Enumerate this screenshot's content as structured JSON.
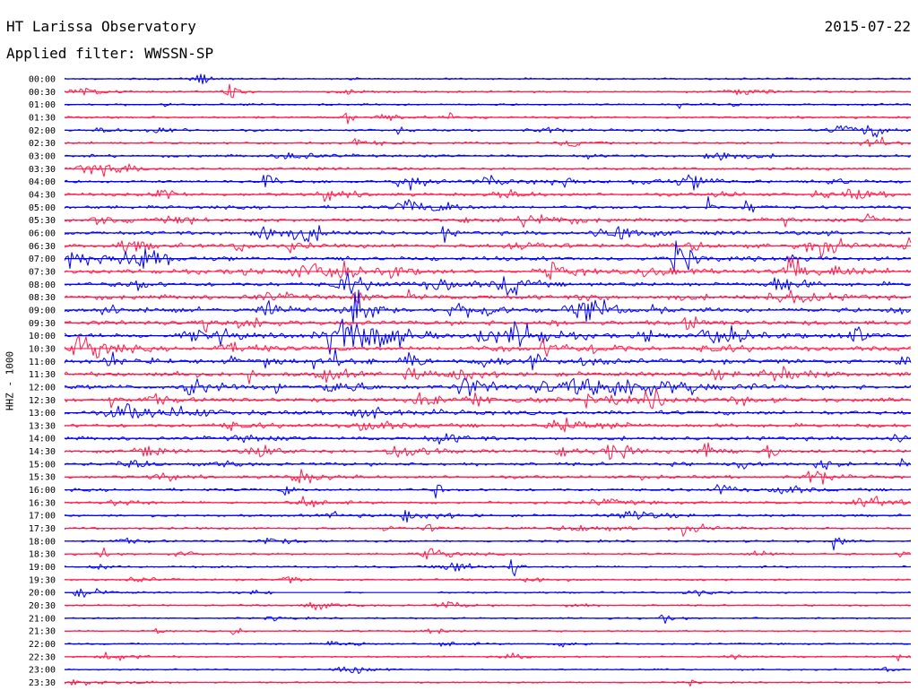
{
  "header": {
    "title": "HT Larissa Observatory",
    "date": "2015-07-22",
    "filter_label": "Applied filter: WWSSN-SP"
  },
  "chart_data": {
    "type": "line",
    "title": "HT Larissa Observatory",
    "ylabel": "HHZ - 1000",
    "xlabel": "",
    "time_labels": [
      "00:00",
      "00:30",
      "01:00",
      "01:30",
      "02:00",
      "02:30",
      "03:00",
      "03:30",
      "04:00",
      "04:30",
      "05:00",
      "05:30",
      "06:00",
      "06:30",
      "07:00",
      "07:30",
      "08:00",
      "08:30",
      "09:00",
      "09:30",
      "10:00",
      "10:30",
      "11:00",
      "11:30",
      "12:00",
      "12:30",
      "13:00",
      "13:30",
      "14:00",
      "14:30",
      "15:00",
      "15:30",
      "16:00",
      "16:30",
      "17:00",
      "17:30",
      "18:00",
      "18:30",
      "19:00",
      "19:30",
      "20:00",
      "20:30",
      "21:00",
      "21:30",
      "22:00",
      "22:30",
      "23:00",
      "23:30"
    ],
    "trace_colors": [
      "#0000ff",
      "#ff1a4a"
    ],
    "grid": false,
    "legend": "none"
  }
}
